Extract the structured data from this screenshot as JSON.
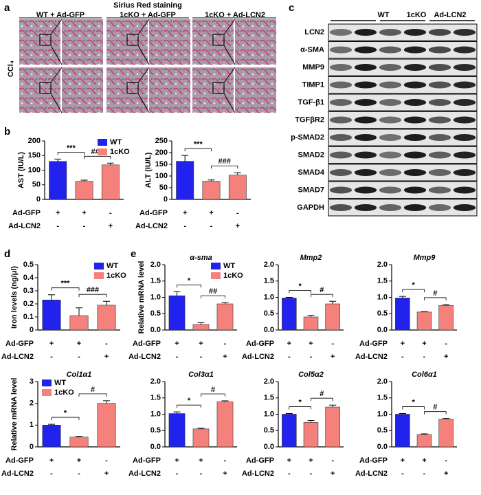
{
  "panel_labels": [
    "a",
    "b",
    "c",
    "d",
    "e"
  ],
  "staining": {
    "title": "Sirius Red staining",
    "groups": [
      "WT + Ad-GFP",
      "1cKO + Ad-GFP",
      "1cKO + Ad-LCN2"
    ],
    "row_label": "CCl₄"
  },
  "blot": {
    "groups": [
      "WT",
      "1cKO",
      "Ad-LCN2"
    ],
    "proteins": [
      "LCN2",
      "α-SMA",
      "MMP9",
      "TIMP1",
      "TGF-β1",
      "TGFβR2",
      "p-SMAD2",
      "SMAD2",
      "SMAD4",
      "SMAD7",
      "GAPDH"
    ]
  },
  "chart_data": [
    {
      "type": "bar",
      "ylabel": "AST (IU/L)",
      "ylim": [
        0,
        200
      ],
      "yticks": [
        0,
        50,
        100,
        150,
        200
      ],
      "series": [
        {
          "name": "WT",
          "color": "#2222ee",
          "values": [
            130,
            null,
            null
          ],
          "errors": [
            8,
            null,
            null
          ]
        },
        {
          "name": "1cKO",
          "color": "#f4817c",
          "values": [
            null,
            62,
            118
          ],
          "errors": [
            null,
            4,
            6
          ]
        }
      ],
      "annotations": [
        "***",
        "###"
      ],
      "legend": "upper right",
      "treatments": [
        {
          "name": "Ad-GFP",
          "marks": [
            "+",
            "+",
            "-"
          ]
        },
        {
          "name": "Ad-LCN2",
          "marks": [
            "-",
            "-",
            "+"
          ]
        }
      ]
    },
    {
      "type": "bar",
      "ylabel": "ALT (IU/L)",
      "ylim": [
        0,
        250
      ],
      "yticks": [
        0,
        50,
        100,
        150,
        200,
        250
      ],
      "series": [
        {
          "color": "#2222ee",
          "values": [
            163,
            null,
            null
          ],
          "errors": [
            25,
            null,
            null
          ]
        },
        {
          "color": "#f4817c",
          "values": [
            null,
            78,
            104
          ],
          "errors": [
            null,
            5,
            10
          ]
        }
      ],
      "annotations": [
        "***",
        "###"
      ],
      "treatments": [
        {
          "name": "Ad-GFP",
          "marks": [
            "+",
            "+",
            "-"
          ]
        },
        {
          "name": "Ad-LCN2",
          "marks": [
            "-",
            "-",
            "+"
          ]
        }
      ]
    },
    {
      "type": "bar",
      "ylabel": "Iron levels (ng/μl)",
      "ylim": [
        0,
        0.5
      ],
      "yticks": [
        0,
        0.1,
        0.2,
        0.3,
        0.4,
        0.5
      ],
      "series": [
        {
          "name": "WT",
          "color": "#2222ee",
          "values": [
            0.23,
            null,
            null
          ],
          "errors": [
            0.04,
            null,
            null
          ]
        },
        {
          "name": "1cKO",
          "color": "#f4817c",
          "values": [
            null,
            0.11,
            0.19
          ],
          "errors": [
            null,
            0.06,
            0.03
          ]
        }
      ],
      "annotations": [
        "***",
        "###"
      ],
      "legend": "upper right",
      "treatments": [
        {
          "name": "Ad-GFP",
          "marks": [
            "+",
            "+",
            "-"
          ]
        },
        {
          "name": "Ad-LCN2",
          "marks": [
            "-",
            "-",
            "+"
          ]
        }
      ]
    },
    {
      "type": "bar",
      "title": "α-sma",
      "ylabel": "Relative mRNA level",
      "ylim": [
        0,
        2
      ],
      "yticks": [
        {
          "value": 0,
          "label": "0.0"
        },
        0.5,
        {
          "value": 1,
          "label": "1.0"
        },
        1.5,
        {
          "value": 2,
          "label": "2.0"
        }
      ],
      "series": [
        {
          "name": "WT",
          "color": "#2222ee",
          "values": [
            1.05,
            null,
            null
          ],
          "errors": [
            0.12,
            null,
            null
          ]
        },
        {
          "name": "1cKO",
          "color": "#f4817c",
          "values": [
            null,
            0.17,
            0.8
          ],
          "errors": [
            null,
            0.05,
            0.04
          ]
        }
      ],
      "annotations": [
        "*",
        "##"
      ],
      "legend": "upper right",
      "treatments": [
        {
          "name": "Ad-GFP",
          "marks": [
            "+",
            "+",
            "-"
          ]
        },
        {
          "name": "Ad-LCN2",
          "marks": [
            "-",
            "-",
            "+"
          ]
        }
      ]
    },
    {
      "type": "bar",
      "title": "Mmp2",
      "ylim": [
        0,
        2
      ],
      "yticks": [
        {
          "value": 0,
          "label": "0.0"
        },
        0.5,
        {
          "value": 1,
          "label": "1.0"
        },
        1.5,
        {
          "value": 2,
          "label": "2.0"
        }
      ],
      "series": [
        {
          "color": "#2222ee",
          "values": [
            0.98,
            null,
            null
          ],
          "errors": [
            0.02,
            null,
            null
          ]
        },
        {
          "color": "#f4817c",
          "values": [
            null,
            0.4,
            0.8
          ],
          "errors": [
            null,
            0.05,
            0.08
          ]
        }
      ],
      "annotations": [
        "*",
        "#"
      ],
      "treatments": [
        {
          "name": "Ad-GFP",
          "marks": [
            "+",
            "+",
            "-"
          ]
        },
        {
          "name": "Ad-LCN2",
          "marks": [
            "-",
            "-",
            "+"
          ]
        }
      ]
    },
    {
      "type": "bar",
      "title": "Mmp9",
      "ylim": [
        0,
        2
      ],
      "yticks": [
        {
          "value": 0,
          "label": "0.0"
        },
        0.5,
        {
          "value": 1,
          "label": "1.0"
        },
        1.5,
        {
          "value": 2,
          "label": "2.0"
        }
      ],
      "series": [
        {
          "color": "#2222ee",
          "values": [
            0.98,
            null,
            null
          ],
          "errors": [
            0.05,
            null,
            null
          ]
        },
        {
          "color": "#f4817c",
          "values": [
            null,
            0.55,
            0.75
          ],
          "errors": [
            null,
            0.01,
            0.03
          ]
        }
      ],
      "annotations": [
        "*",
        "#"
      ],
      "treatments": [
        {
          "name": "Ad-GFP",
          "marks": [
            "+",
            "+",
            "-"
          ]
        },
        {
          "name": "Ad-LCN2",
          "marks": [
            "-",
            "-",
            "+"
          ]
        }
      ]
    },
    {
      "type": "bar",
      "title": "Col1α1",
      "ylabel": "Relative mRNA level",
      "ylim": [
        0,
        3
      ],
      "yticks": [
        0,
        1,
        2,
        3
      ],
      "series": [
        {
          "name": "WT",
          "color": "#2222ee",
          "values": [
            1.0,
            null,
            null
          ],
          "errors": [
            0.04,
            null,
            null
          ]
        },
        {
          "name": "1cKO",
          "color": "#f4817c",
          "values": [
            null,
            0.45,
            2.0
          ],
          "errors": [
            null,
            0.03,
            0.12
          ]
        }
      ],
      "annotations": [
        "*",
        "#"
      ],
      "legend": "upper left",
      "treatments": [
        {
          "name": "Ad-GFP",
          "marks": [
            "+",
            "+",
            "-"
          ]
        },
        {
          "name": "Ad-LCN2",
          "marks": [
            "-",
            "-",
            "+"
          ]
        }
      ]
    },
    {
      "type": "bar",
      "title": "Col3α1",
      "ylim": [
        0,
        2
      ],
      "yticks": [
        {
          "value": 0,
          "label": "0.0"
        },
        0.5,
        {
          "value": 1,
          "label": "1.0"
        },
        1.5,
        {
          "value": 2,
          "label": "2.0"
        }
      ],
      "series": [
        {
          "color": "#2222ee",
          "values": [
            1.02,
            null,
            null
          ],
          "errors": [
            0.05,
            null,
            null
          ]
        },
        {
          "color": "#f4817c",
          "values": [
            null,
            0.55,
            1.38
          ],
          "errors": [
            null,
            0.02,
            0.03
          ]
        }
      ],
      "annotations": [
        "*",
        "#"
      ],
      "treatments": [
        {
          "name": "Ad-GFP",
          "marks": [
            "+",
            "+",
            "-"
          ]
        },
        {
          "name": "Ad-LCN2",
          "marks": [
            "-",
            "-",
            "+"
          ]
        }
      ]
    },
    {
      "type": "bar",
      "title": "Col5α2",
      "ylim": [
        0,
        2
      ],
      "yticks": [
        {
          "value": 0,
          "label": "0.0"
        },
        0.5,
        {
          "value": 1,
          "label": "1.0"
        },
        1.5,
        {
          "value": 2,
          "label": "2.0"
        }
      ],
      "series": [
        {
          "color": "#2222ee",
          "values": [
            1.0,
            null,
            null
          ],
          "errors": [
            0.02,
            null,
            null
          ]
        },
        {
          "color": "#f4817c",
          "values": [
            null,
            0.75,
            1.22
          ],
          "errors": [
            null,
            0.06,
            0.06
          ]
        }
      ],
      "annotations": [
        "*",
        "#"
      ],
      "treatments": [
        {
          "name": "Ad-GFP",
          "marks": [
            "+",
            "+",
            "-"
          ]
        },
        {
          "name": "Ad-LCN2",
          "marks": [
            "-",
            "-",
            "+"
          ]
        }
      ]
    },
    {
      "type": "bar",
      "title": "Col6α1",
      "ylim": [
        0,
        2
      ],
      "yticks": [
        {
          "value": 0,
          "label": "0.0"
        },
        0.5,
        {
          "value": 1,
          "label": "1.0"
        },
        1.5,
        {
          "value": 2,
          "label": "2.0"
        }
      ],
      "series": [
        {
          "color": "#2222ee",
          "values": [
            1.0,
            null,
            null
          ],
          "errors": [
            0.02,
            null,
            null
          ]
        },
        {
          "color": "#f4817c",
          "values": [
            null,
            0.38,
            0.85
          ],
          "errors": [
            null,
            0.02,
            0.02
          ]
        }
      ],
      "annotations": [
        "*",
        "#"
      ],
      "treatments": [
        {
          "name": "Ad-GFP",
          "marks": [
            "+",
            "+",
            "-"
          ]
        },
        {
          "name": "Ad-LCN2",
          "marks": [
            "-",
            "-",
            "+"
          ]
        }
      ]
    }
  ]
}
